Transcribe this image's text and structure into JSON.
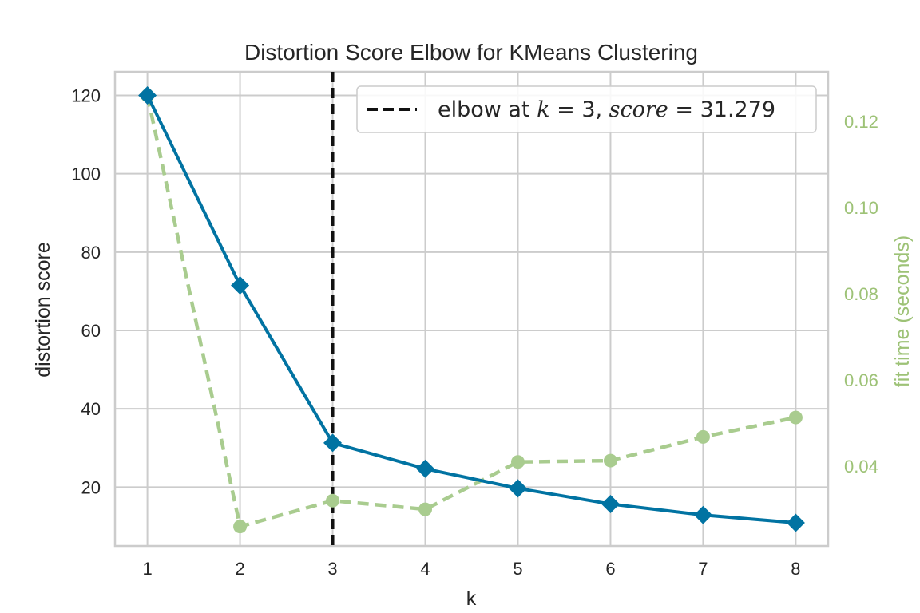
{
  "chart_data": {
    "type": "line",
    "title": "Distortion Score Elbow for KMeans Clustering",
    "xlabel": "k",
    "ylabel": "distortion score",
    "y2label": "fit time (seconds)",
    "x": [
      1,
      2,
      3,
      4,
      5,
      6,
      7,
      8
    ],
    "xlim": [
      0.65,
      8.35
    ],
    "ylim": [
      5.0,
      126.0
    ],
    "y2lim": [
      0.0215,
      0.1315
    ],
    "x_ticks": [
      "1",
      "2",
      "3",
      "4",
      "5",
      "6",
      "7",
      "8"
    ],
    "y_ticks": [
      20,
      40,
      60,
      80,
      100,
      120
    ],
    "y2_ticks": [
      "0.04",
      "0.06",
      "0.08",
      "0.10",
      "0.12"
    ],
    "grid": true,
    "legend_position": "top-right",
    "series": [
      {
        "axis": "left",
        "color": "#0173a2",
        "marker": "diamond",
        "line_style": "solid",
        "values": [
          120.0,
          71.5,
          31.3,
          24.7,
          19.7,
          15.7,
          12.9,
          10.9
        ]
      },
      {
        "axis": "right",
        "color": "#a9cc8f",
        "marker": "circle",
        "line_style": "dashed",
        "values": [
          0.126,
          0.026,
          0.032,
          0.03,
          0.041,
          0.0413,
          0.0468,
          0.0513
        ]
      }
    ],
    "elbow": {
      "k": 3,
      "color": "#111111",
      "legend": {
        "prefix": "elbow at ",
        "k_symbol": "k",
        "k_eq": " = 3, ",
        "score_symbol": "score",
        "score_eq": " = 31.279"
      }
    }
  }
}
